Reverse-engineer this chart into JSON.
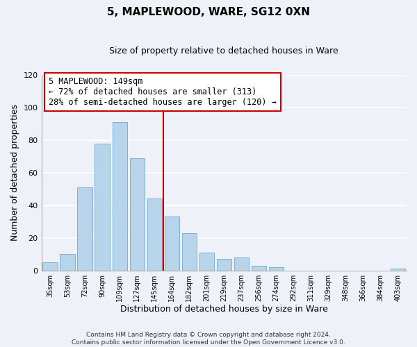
{
  "title": "5, MAPLEWOOD, WARE, SG12 0XN",
  "subtitle": "Size of property relative to detached houses in Ware",
  "xlabel": "Distribution of detached houses by size in Ware",
  "ylabel": "Number of detached properties",
  "bar_labels": [
    "35sqm",
    "53sqm",
    "72sqm",
    "90sqm",
    "109sqm",
    "127sqm",
    "145sqm",
    "164sqm",
    "182sqm",
    "201sqm",
    "219sqm",
    "237sqm",
    "256sqm",
    "274sqm",
    "292sqm",
    "311sqm",
    "329sqm",
    "348sqm",
    "366sqm",
    "384sqm",
    "403sqm"
  ],
  "bar_values": [
    5,
    10,
    51,
    78,
    91,
    69,
    44,
    33,
    23,
    11,
    7,
    8,
    3,
    2,
    0,
    0,
    0,
    0,
    0,
    0,
    1
  ],
  "bar_color": "#b8d4ea",
  "bar_edge_color": "#7ab0d4",
  "red_line_x": 6.5,
  "marker_color": "#cc0000",
  "annotation_lines": [
    "5 MAPLEWOOD: 149sqm",
    "← 72% of detached houses are smaller (313)",
    "28% of semi-detached houses are larger (120) →"
  ],
  "annotation_box_color": "#ffffff",
  "annotation_box_edge_color": "#cc0000",
  "ylim": [
    0,
    120
  ],
  "yticks": [
    0,
    20,
    40,
    60,
    80,
    100,
    120
  ],
  "footer_line1": "Contains HM Land Registry data © Crown copyright and database right 2024.",
  "footer_line2": "Contains public sector information licensed under the Open Government Licence v3.0.",
  "background_color": "#eef2f8",
  "grid_color": "#ffffff",
  "title_fontsize": 11,
  "subtitle_fontsize": 9
}
